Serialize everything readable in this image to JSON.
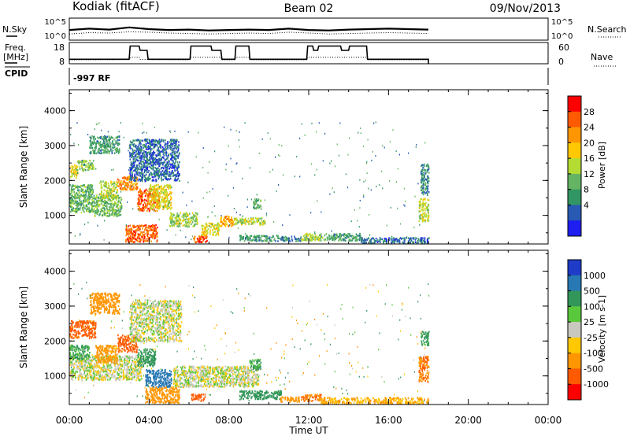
{
  "header": {
    "station": "Kodiak (fitACF)",
    "beam": "Beam 02",
    "date": "09/Nov/2013"
  },
  "noise_panel": {
    "left_label": "N.Sky",
    "right_label": "N.Search",
    "y_ticks_left": [
      "10^5",
      "10^0"
    ],
    "y_ticks_right": [
      "10^5",
      "10^0"
    ]
  },
  "freq_panel": {
    "left_label_1": "Freq.",
    "left_label_2": "[MHz]",
    "right_label": "Nave",
    "y_ticks_left": [
      "18",
      "8"
    ],
    "y_ticks_right": [
      "60",
      "0"
    ]
  },
  "cpid_panel": {
    "label": "CPID",
    "value": "-997 RF"
  },
  "axes": {
    "ylabel": "Slant Range [km]",
    "xlabel": "Time UT",
    "y_ticks": [
      "4000",
      "3000",
      "2000",
      "1000"
    ],
    "x_ticks": [
      "00:00",
      "04:00",
      "08:00",
      "12:00",
      "16:00",
      "20:00",
      "00:00"
    ]
  },
  "power_colorbar": {
    "label": "Power [dB]",
    "ticks": [
      "28",
      "24",
      "20",
      "16",
      "12",
      "8",
      "4"
    ],
    "colors": [
      "#ff0000",
      "#ff5a00",
      "#ff9600",
      "#ffc800",
      "#b4dc32",
      "#64b464",
      "#329664",
      "#285ab4",
      "#1e1ef0"
    ]
  },
  "velocity_colorbar": {
    "label": "Velocity [m s-1]",
    "ticks": [
      "1000",
      "500",
      "100",
      "25",
      "-25",
      "-100",
      "-500",
      "-1000"
    ],
    "colors": [
      "#1e3cc8",
      "#2878b4",
      "#32965a",
      "#5ac83c",
      "#c8c8c0",
      "#ffc800",
      "#ff9600",
      "#ff5a00",
      "#ff0000"
    ]
  },
  "chart_data": {
    "type": "heatmap",
    "title": "Kodiak (fitACF)",
    "xlabel": "Time UT",
    "ylabel": "Slant Range [km]",
    "xlim": [
      0,
      24
    ],
    "ylim": [
      180,
      4600
    ],
    "nsky_series": [
      [
        0,
        2.3
      ],
      [
        1,
        2.6
      ],
      [
        2,
        2.4
      ],
      [
        3,
        2.9
      ],
      [
        4,
        2.5
      ],
      [
        5,
        2.3
      ],
      [
        6,
        2.4
      ],
      [
        7,
        2.2
      ],
      [
        8,
        2.3
      ],
      [
        9,
        2.4
      ],
      [
        10,
        2.3
      ],
      [
        11,
        2.6
      ],
      [
        12,
        2.3
      ],
      [
        13,
        2.2
      ],
      [
        14,
        2.4
      ],
      [
        15,
        2.5
      ],
      [
        16,
        2.6
      ],
      [
        17,
        2.5
      ],
      [
        18,
        2.4
      ]
    ],
    "nsearch_series": [
      [
        0,
        1.4
      ],
      [
        1,
        1.7
      ],
      [
        2,
        1.6
      ],
      [
        3,
        1.9
      ],
      [
        4,
        1.8
      ],
      [
        5,
        1.6
      ],
      [
        6,
        1.5
      ],
      [
        7,
        1.4
      ],
      [
        8,
        1.5
      ],
      [
        9,
        1.6
      ],
      [
        10,
        1.5
      ],
      [
        11,
        1.8
      ],
      [
        12,
        1.6
      ],
      [
        13,
        1.4
      ],
      [
        14,
        1.5
      ],
      [
        15,
        1.6
      ],
      [
        16,
        1.7
      ],
      [
        17,
        1.6
      ],
      [
        18,
        1.5
      ]
    ],
    "freq_series": [
      [
        0,
        10.3
      ],
      [
        3,
        10.3
      ],
      [
        3.05,
        17
      ],
      [
        3.5,
        17
      ],
      [
        3.55,
        14.8
      ],
      [
        3.9,
        14.8
      ],
      [
        3.95,
        10.3
      ],
      [
        6.05,
        10.3
      ],
      [
        6.1,
        17
      ],
      [
        7.1,
        17
      ],
      [
        7.15,
        14.8
      ],
      [
        7.6,
        14.8
      ],
      [
        7.65,
        10.3
      ],
      [
        8.3,
        10.3
      ],
      [
        8.35,
        17
      ],
      [
        9.0,
        17
      ],
      [
        9.05,
        10.3
      ],
      [
        11.9,
        10.3
      ],
      [
        11.95,
        17
      ],
      [
        12.2,
        17
      ],
      [
        12.25,
        14.8
      ],
      [
        12.45,
        14.8
      ],
      [
        12.5,
        17
      ],
      [
        13.6,
        17
      ],
      [
        13.65,
        14.8
      ],
      [
        14.0,
        14.8
      ],
      [
        14.05,
        17
      ],
      [
        14.9,
        17
      ],
      [
        14.95,
        10.3
      ],
      [
        18.0,
        10.3
      ],
      [
        18.0,
        8
      ]
    ],
    "nave_series": [
      [
        0,
        12
      ],
      [
        3,
        13
      ],
      [
        3.1,
        20
      ],
      [
        3.5,
        20
      ],
      [
        3.55,
        13
      ],
      [
        6,
        12
      ],
      [
        6.1,
        20
      ],
      [
        7.6,
        20
      ],
      [
        7.65,
        12
      ],
      [
        8.3,
        12
      ],
      [
        8.35,
        20
      ],
      [
        9.0,
        20
      ],
      [
        9.05,
        12
      ],
      [
        11.9,
        12
      ],
      [
        11.95,
        20
      ],
      [
        14.9,
        20
      ],
      [
        14.95,
        12
      ],
      [
        18.0,
        12
      ]
    ],
    "power_patches": [
      {
        "t0": 0.0,
        "t1": 0.4,
        "r0": 2100,
        "r1": 2500,
        "v": 18
      },
      {
        "t0": 0.4,
        "t1": 1.2,
        "r0": 2300,
        "r1": 2600,
        "v": 14
      },
      {
        "t0": 0.0,
        "t1": 1.2,
        "r0": 1100,
        "r1": 1900,
        "v": 12
      },
      {
        "t0": 1.2,
        "t1": 2.6,
        "r0": 1000,
        "r1": 1600,
        "v": 13
      },
      {
        "t0": 1.5,
        "t1": 2.4,
        "r0": 1500,
        "r1": 2000,
        "v": 16
      },
      {
        "t0": 2.4,
        "t1": 3.4,
        "r0": 1750,
        "r1": 2150,
        "v": 24
      },
      {
        "t0": 3.4,
        "t1": 4.5,
        "r0": 1150,
        "r1": 1800,
        "v": 26
      },
      {
        "t0": 4.0,
        "t1": 5.1,
        "r0": 1200,
        "r1": 1900,
        "v": 18
      },
      {
        "t0": 2.8,
        "t1": 4.4,
        "r0": 250,
        "r1": 750,
        "v": 26
      },
      {
        "t0": 5.0,
        "t1": 6.4,
        "r0": 700,
        "r1": 1100,
        "v": 15
      },
      {
        "t0": 6.2,
        "t1": 6.9,
        "r0": 250,
        "r1": 450,
        "v": 27
      },
      {
        "t0": 6.6,
        "t1": 7.5,
        "r0": 450,
        "r1": 800,
        "v": 18
      },
      {
        "t0": 7.5,
        "t1": 8.2,
        "r0": 700,
        "r1": 1000,
        "v": 22
      },
      {
        "t0": 8.2,
        "t1": 9.8,
        "r0": 750,
        "r1": 950,
        "v": 16
      },
      {
        "t0": 9.2,
        "t1": 9.6,
        "r0": 1200,
        "r1": 1500,
        "v": 11
      },
      {
        "t0": 8.5,
        "t1": 10.5,
        "r0": 280,
        "r1": 450,
        "v": 10
      },
      {
        "t0": 10.5,
        "t1": 11.6,
        "r0": 280,
        "r1": 420,
        "v": 8
      },
      {
        "t0": 11.6,
        "t1": 12.8,
        "r0": 300,
        "r1": 500,
        "v": 15
      },
      {
        "t0": 12.8,
        "t1": 14.6,
        "r0": 300,
        "r1": 500,
        "v": 10
      },
      {
        "t0": 14.6,
        "t1": 18.0,
        "r0": 220,
        "r1": 380,
        "v": 6
      },
      {
        "t0": 17.5,
        "t1": 18.0,
        "r0": 850,
        "r1": 1500,
        "v": 17
      },
      {
        "t0": 17.6,
        "t1": 18.0,
        "r0": 1600,
        "r1": 2500,
        "v": 8
      },
      {
        "t0": 3.0,
        "t1": 5.5,
        "r0": 2000,
        "r1": 3200,
        "v": 6
      },
      {
        "t0": 1.0,
        "t1": 2.5,
        "r0": 2800,
        "r1": 3300,
        "v": 10
      }
    ],
    "velocity_patches": [
      {
        "t0": 0.0,
        "t1": 1.3,
        "r0": 2100,
        "r1": 2600,
        "v": -550
      },
      {
        "t0": 0.0,
        "t1": 3.6,
        "r0": 900,
        "r1": 1600,
        "v": 0
      },
      {
        "t0": 0.0,
        "t1": 1.0,
        "r0": 1500,
        "r1": 1900,
        "v": 120
      },
      {
        "t0": 1.3,
        "t1": 2.4,
        "r0": 1400,
        "r1": 1900,
        "v": -150
      },
      {
        "t0": 2.4,
        "t1": 3.4,
        "r0": 1700,
        "r1": 2200,
        "v": -550
      },
      {
        "t0": 3.4,
        "t1": 4.3,
        "r0": 1300,
        "r1": 1800,
        "v": 150
      },
      {
        "t0": 3.8,
        "t1": 5.1,
        "r0": 700,
        "r1": 1200,
        "v": 700
      },
      {
        "t0": 3.8,
        "t1": 5.5,
        "r0": 250,
        "r1": 700,
        "v": -300
      },
      {
        "t0": 5.2,
        "t1": 9.5,
        "r0": 700,
        "r1": 1300,
        "v": 0
      },
      {
        "t0": 6.1,
        "t1": 6.8,
        "r0": 300,
        "r1": 500,
        "v": -600
      },
      {
        "t0": 9.0,
        "t1": 9.6,
        "r0": 1200,
        "r1": 1500,
        "v": 120
      },
      {
        "t0": 8.5,
        "t1": 10.6,
        "r0": 350,
        "r1": 600,
        "v": 200
      },
      {
        "t0": 10.5,
        "t1": 11.5,
        "r0": 280,
        "r1": 420,
        "v": -200
      },
      {
        "t0": 11.6,
        "t1": 12.6,
        "r0": 300,
        "r1": 500,
        "v": -500
      },
      {
        "t0": 12.6,
        "t1": 18.0,
        "r0": 220,
        "r1": 400,
        "v": -100
      },
      {
        "t0": 17.5,
        "t1": 18.0,
        "r0": 850,
        "r1": 1600,
        "v": -500
      },
      {
        "t0": 17.6,
        "t1": 18.0,
        "r0": 1900,
        "r1": 2300,
        "v": 150
      },
      {
        "t0": 3.0,
        "t1": 5.6,
        "r0": 2000,
        "r1": 3200,
        "v": 0
      },
      {
        "t0": 1.0,
        "t1": 2.5,
        "r0": 2800,
        "r1": 3400,
        "v": -300
      }
    ]
  }
}
